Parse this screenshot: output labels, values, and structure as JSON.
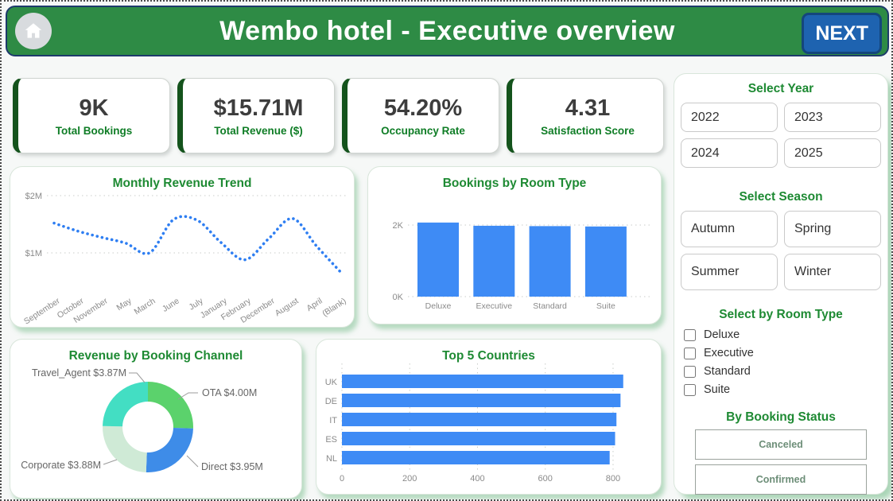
{
  "header": {
    "title": "Wembo hotel - Executive overview",
    "next_label": "NEXT"
  },
  "kpis": [
    {
      "value": "9K",
      "label": "Total Bookings"
    },
    {
      "value": "$15.71M",
      "label": "Total Revenue ($)"
    },
    {
      "value": "54.20%",
      "label": "Occupancy Rate"
    },
    {
      "value": "4.31",
      "label": "Satisfaction Score"
    }
  ],
  "chart_data": [
    {
      "id": "monthly-trend",
      "type": "line",
      "style": "dotted",
      "title": "Monthly Revenue Trend",
      "x": [
        "September",
        "October",
        "November",
        "May",
        "March",
        "June",
        "July",
        "January",
        "February",
        "December",
        "August",
        "April",
        "(Blank)"
      ],
      "values": [
        1.52,
        1.38,
        1.27,
        1.17,
        1.0,
        1.58,
        1.57,
        1.18,
        0.88,
        1.25,
        1.6,
        1.12,
        0.67
      ],
      "unit": "M$",
      "ylim": [
        0.5,
        2.2
      ],
      "yticks": [
        {
          "label": "$2M",
          "value": 2
        },
        {
          "label": "$1M",
          "value": 1
        }
      ],
      "line_color": "#2e7ef2",
      "grid": true
    },
    {
      "id": "room-type",
      "type": "bar",
      "title": "Bookings by Room Type",
      "categories": [
        "Deluxe",
        "Executive",
        "Standard",
        "Suite"
      ],
      "values": [
        2.07,
        1.98,
        1.97,
        1.96
      ],
      "unit": "K",
      "ylim": [
        0,
        2.6
      ],
      "yticks": [
        {
          "label": "2K",
          "value": 2
        },
        {
          "label": "0K",
          "value": 0
        }
      ],
      "bar_color": "#3e8bf5",
      "grid": true
    },
    {
      "id": "booking-channel",
      "type": "donut",
      "title": "Revenue by Booking Channel",
      "segments": [
        {
          "name": "OTA",
          "value": 4.0,
          "label": "OTA $4.00M",
          "color": "#5bd26c"
        },
        {
          "name": "Direct",
          "value": 3.95,
          "label": "Direct $3.95M",
          "color": "#3e8ce8"
        },
        {
          "name": "Corporate",
          "value": 3.88,
          "label": "Corporate $3.88M",
          "color": "#cfead6"
        },
        {
          "name": "Travel_Agent",
          "value": 3.87,
          "label": "Travel_Agent $3.87M",
          "color": "#43dec3"
        }
      ]
    },
    {
      "id": "top-countries",
      "type": "hbar",
      "title": "Top 5 Countries",
      "categories": [
        "UK",
        "DE",
        "IT",
        "ES",
        "NL"
      ],
      "values": [
        830,
        822,
        810,
        806,
        790
      ],
      "xticks": [
        {
          "label": "0",
          "value": 0
        },
        {
          "label": "200",
          "value": 200
        },
        {
          "label": "400",
          "value": 400
        },
        {
          "label": "600",
          "value": 600
        },
        {
          "label": "800",
          "value": 800
        }
      ],
      "xlim": [
        0,
        880
      ],
      "bar_color": "#3e8bf5",
      "grid": true
    }
  ],
  "filters": {
    "year": {
      "title": "Select Year",
      "options": [
        "2022",
        "2023",
        "2024",
        "2025"
      ]
    },
    "season": {
      "title": "Select Season",
      "options": [
        "Autumn",
        "Spring",
        "Summer",
        "Winter"
      ]
    },
    "room": {
      "title": "Select by Room Type",
      "options": [
        "Deluxe",
        "Executive",
        "Standard",
        "Suite"
      ]
    },
    "status": {
      "title": "By Booking Status",
      "options": [
        "Canceled",
        "Confirmed"
      ]
    }
  }
}
